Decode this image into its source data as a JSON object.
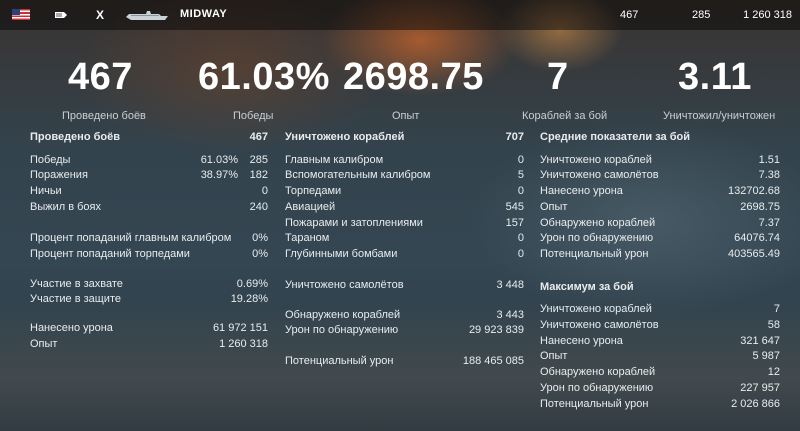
{
  "topbar": {
    "tier": "X",
    "ship_name": "MIDWAY",
    "battles": "467",
    "wins": "285",
    "experience": "1 260 318"
  },
  "summary": [
    {
      "value": "467",
      "label": "Проведено боёв"
    },
    {
      "value": "61.03%",
      "label": "Победы"
    },
    {
      "value": "2698.75",
      "label": "Опыт"
    },
    {
      "value": "7",
      "label": "Кораблей за бой"
    },
    {
      "value": "3.11",
      "label": "Уничтожил/уничтожен"
    }
  ],
  "col1": {
    "title": "Проведено боёв",
    "title_value": "467",
    "rows": [
      {
        "label": "Победы",
        "pct": "61.03%",
        "value": "285"
      },
      {
        "label": "Поражения",
        "pct": "38.97%",
        "value": "182"
      },
      {
        "label": "Ничьи",
        "value": "0"
      },
      {
        "label": "Выжил в боях",
        "value": "240"
      }
    ],
    "accuracy": [
      {
        "label": "Процент попаданий главным калибром",
        "value": "0%"
      },
      {
        "label": "Процент попаданий торпедами",
        "value": "0%"
      }
    ],
    "capture": [
      {
        "label": "Участие в захвате",
        "value": "0.69%"
      },
      {
        "label": "Участие в защите",
        "value": "19.28%"
      }
    ],
    "totals": [
      {
        "label": "Нанесено урона",
        "value": "61 972 151"
      },
      {
        "label": "Опыт",
        "value": "1 260 318"
      }
    ]
  },
  "col2": {
    "title": "Уничтожено кораблей",
    "title_value": "707",
    "rows": [
      {
        "label": "Главным калибром",
        "value": "0"
      },
      {
        "label": "Вспомогательным калибром",
        "value": "5"
      },
      {
        "label": "Торпедами",
        "value": "0"
      },
      {
        "label": "Авиацией",
        "value": "545"
      },
      {
        "label": "Пожарами и затоплениями",
        "value": "157"
      },
      {
        "label": "Тараном",
        "value": "0"
      },
      {
        "label": "Глубинными бомбами",
        "value": "0"
      }
    ],
    "planes": {
      "label": "Уничтожено самолётов",
      "value": "3 448"
    },
    "spotting": [
      {
        "label": "Обнаружено кораблей",
        "value": "3 443"
      },
      {
        "label": "Урон по обнаружению",
        "value": "29 923 839"
      }
    ],
    "potential": {
      "label": "Потенциальный урон",
      "value": "188 465 085"
    }
  },
  "col3": {
    "avg_title": "Средние показатели за бой",
    "avg_rows": [
      {
        "label": "Уничтожено кораблей",
        "value": "1.51"
      },
      {
        "label": "Уничтожено самолётов",
        "value": "7.38"
      },
      {
        "label": "Нанесено урона",
        "value": "132702.68"
      },
      {
        "label": "Опыт",
        "value": "2698.75"
      },
      {
        "label": "Обнаружено кораблей",
        "value": "7.37"
      },
      {
        "label": "Урон по обнаружению",
        "value": "64076.74"
      },
      {
        "label": "Потенциальный урон",
        "value": "403565.49"
      }
    ],
    "max_title": "Максимум за бой",
    "max_rows": [
      {
        "label": "Уничтожено кораблей",
        "value": "7"
      },
      {
        "label": "Уничтожено самолётов",
        "value": "58"
      },
      {
        "label": "Нанесено урона",
        "value": "321 647"
      },
      {
        "label": "Опыт",
        "value": "5 987"
      },
      {
        "label": "Обнаружено кораблей",
        "value": "12"
      },
      {
        "label": "Урон по обнаружению",
        "value": "227 957"
      },
      {
        "label": "Потенциальный урон",
        "value": "2 026 866"
      }
    ]
  },
  "icons": {
    "nation": "usa-flag-icon",
    "ship_type": "aircraft-carrier-icon",
    "ship": "ship-silhouette-icon"
  },
  "colors": {
    "flag_red": "#c8313a",
    "flag_blue": "#2f3f7a"
  }
}
